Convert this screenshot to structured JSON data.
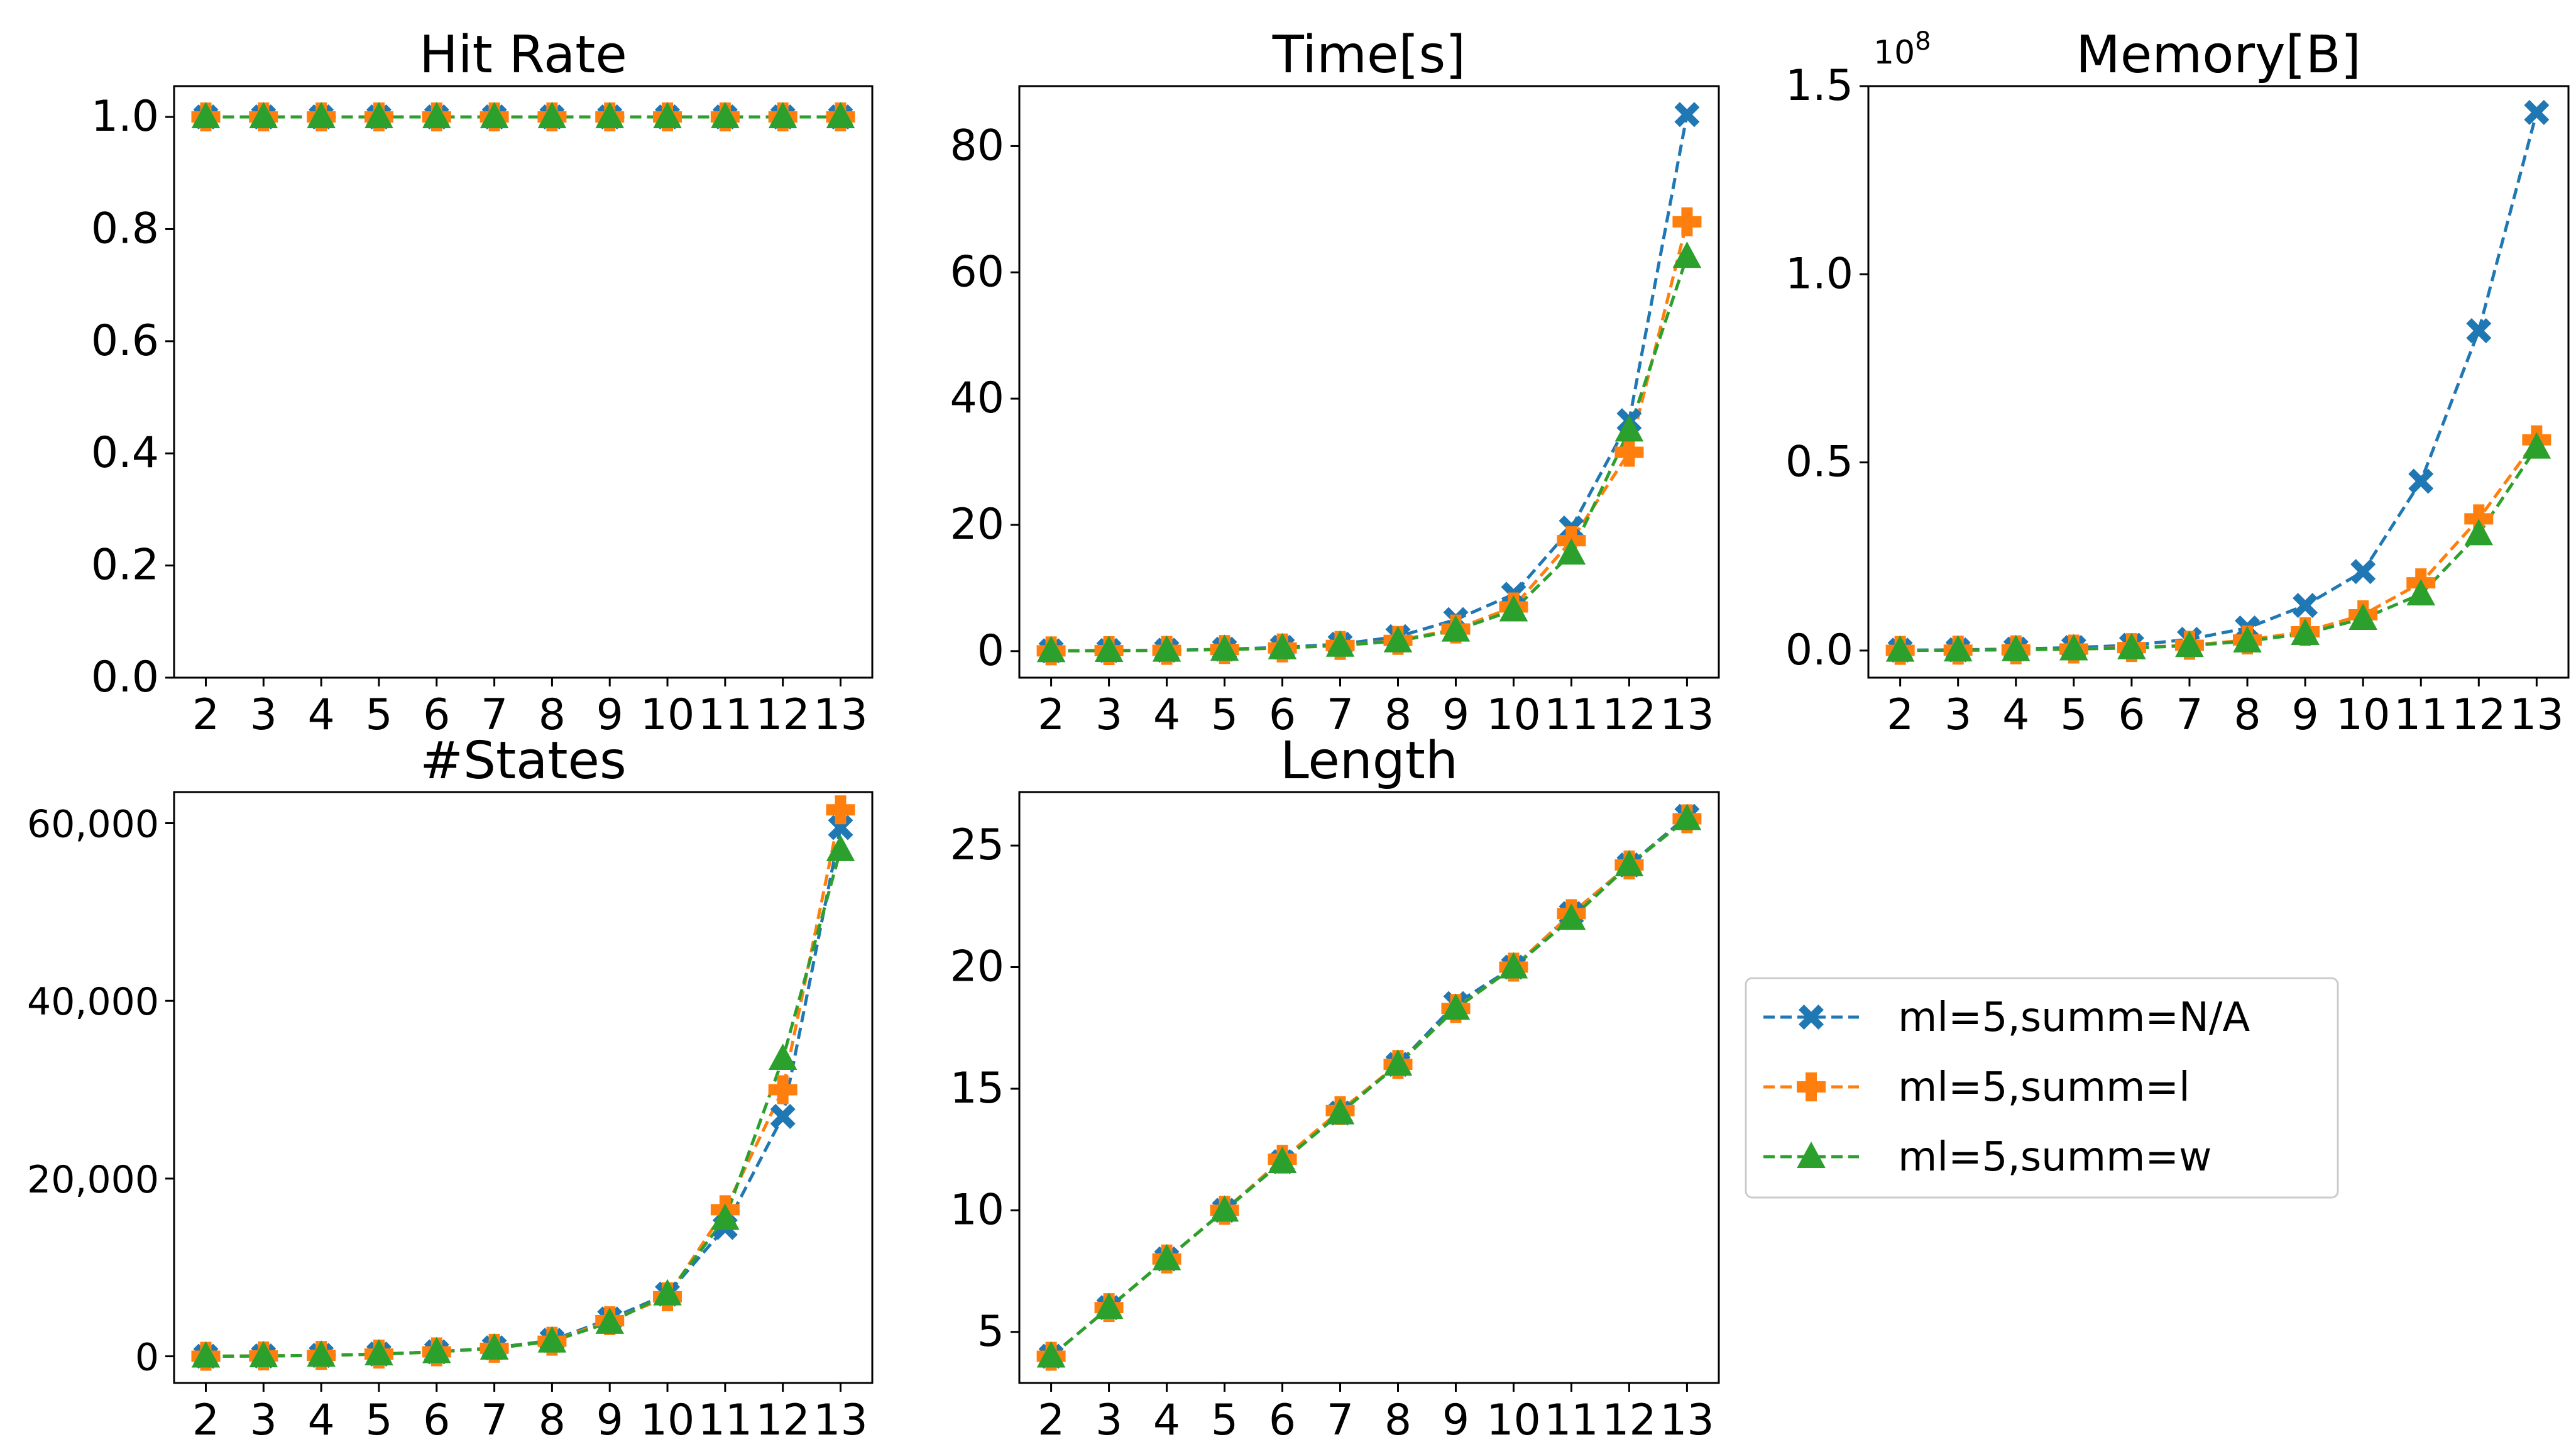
{
  "chart_data": {
    "type": "line",
    "x": [
      2,
      3,
      4,
      5,
      6,
      7,
      8,
      9,
      10,
      11,
      12,
      13
    ],
    "x_tick_labels": [
      "2",
      "3",
      "4",
      "5",
      "6",
      "7",
      "8",
      "9",
      "10",
      "11",
      "12",
      "13"
    ],
    "legend": {
      "placement": "right-middle",
      "entries": [
        {
          "name": "ml=5,summ=N/A",
          "color": "#1f77b4",
          "marker": "x"
        },
        {
          "name": "ml=5,summ=l",
          "color": "#ff7f0e",
          "marker": "plus"
        },
        {
          "name": "ml=5,summ=w",
          "color": "#2ca02c",
          "marker": "triangle"
        }
      ]
    },
    "panels": [
      {
        "title": "Hit Rate",
        "ylim": [
          0,
          1.055
        ],
        "yticks": [
          0,
          0.2,
          0.4,
          0.6,
          0.8,
          1.0
        ],
        "ytick_labels": [
          "0.0",
          "0.2",
          "0.4",
          "0.6",
          "0.8",
          "1.0"
        ],
        "series": [
          {
            "name": "ml=5,summ=N/A",
            "values": [
              1,
              1,
              1,
              1,
              1,
              1,
              1,
              1,
              1,
              1,
              1,
              1
            ]
          },
          {
            "name": "ml=5,summ=l",
            "values": [
              1,
              1,
              1,
              1,
              1,
              1,
              1,
              1,
              1,
              1,
              1,
              1
            ]
          },
          {
            "name": "ml=5,summ=w",
            "values": [
              1,
              1,
              1,
              1,
              1,
              1,
              1,
              1,
              1,
              1,
              1,
              1
            ]
          }
        ]
      },
      {
        "title": "Time[s]",
        "ylim": [
          -4.2,
          89.5
        ],
        "yticks": [
          0,
          20,
          40,
          60,
          80
        ],
        "ytick_labels": [
          "0",
          "20",
          "40",
          "60",
          "80"
        ],
        "series": [
          {
            "name": "ml=5,summ=N/A",
            "values": [
              0.05,
              0.1,
              0.15,
              0.3,
              0.6,
              1.1,
              2.3,
              5.0,
              9.0,
              19.5,
              36.5,
              85.0
            ]
          },
          {
            "name": "ml=5,summ=l",
            "values": [
              0.04,
              0.08,
              0.12,
              0.25,
              0.5,
              0.9,
              1.7,
              3.5,
              7.0,
              17.5,
              31.5,
              68.0
            ]
          },
          {
            "name": "ml=5,summ=w",
            "values": [
              0.04,
              0.08,
              0.12,
              0.25,
              0.5,
              0.9,
              1.6,
              3.3,
              6.5,
              15.5,
              35.0,
              62.5
            ]
          }
        ]
      },
      {
        "title": "Memory[B]",
        "offset_text": "10",
        "offset_exponent": "8",
        "ylim": [
          -0.072,
          1.5
        ],
        "yticks": [
          0,
          0.5,
          1.0,
          1.5
        ],
        "ytick_labels": [
          "0.0",
          "0.5",
          "1.0",
          "1.5"
        ],
        "series": [
          {
            "name": "ml=5,summ=N/A",
            "values": [
              0.001,
              0.002,
              0.004,
              0.008,
              0.014,
              0.03,
              0.06,
              0.12,
              0.21,
              0.45,
              0.85,
              1.43
            ]
          },
          {
            "name": "ml=5,summ=l",
            "values": [
              0.0005,
              0.001,
              0.002,
              0.004,
              0.008,
              0.014,
              0.028,
              0.05,
              0.095,
              0.18,
              0.35,
              0.56
            ]
          },
          {
            "name": "ml=5,summ=w",
            "values": [
              0.0005,
              0.001,
              0.002,
              0.004,
              0.007,
              0.013,
              0.025,
              0.045,
              0.085,
              0.15,
              0.31,
              0.54
            ]
          }
        ]
      },
      {
        "title": "#States",
        "ylim": [
          -3000,
          63500
        ],
        "yticks": [
          0,
          20000,
          40000,
          60000
        ],
        "ytick_labels": [
          "0",
          "20,000",
          "40,000",
          "60,000"
        ],
        "series": [
          {
            "name": "ml=5,summ=N/A",
            "values": [
              10,
              40,
              100,
              250,
              500,
              950,
              1800,
              4200,
              7000,
              14500,
              27000,
              59500
            ]
          },
          {
            "name": "ml=5,summ=l",
            "values": [
              10,
              40,
              100,
              250,
              500,
              900,
              1700,
              4000,
              6700,
              16500,
              30000,
              61500
            ]
          },
          {
            "name": "ml=5,summ=w",
            "values": [
              10,
              40,
              100,
              250,
              500,
              900,
              1700,
              3800,
              7000,
              15500,
              33500,
              57000
            ]
          }
        ]
      },
      {
        "title": "Length",
        "ylim": [
          2.9,
          27.2
        ],
        "yticks": [
          5,
          10,
          15,
          20,
          25
        ],
        "ytick_labels": [
          "5",
          "10",
          "15",
          "20",
          "25"
        ],
        "series": [
          {
            "name": "ml=5,summ=N/A",
            "values": [
              4,
              6,
              8,
              10,
              12,
              14,
              16,
              18.5,
              20,
              22.2,
              24.2,
              26.2
            ]
          },
          {
            "name": "ml=5,summ=l",
            "values": [
              4,
              6,
              8,
              10,
              12.1,
              14.1,
              16,
              18.3,
              20,
              22.2,
              24.2,
              26.1
            ]
          },
          {
            "name": "ml=5,summ=w",
            "values": [
              4,
              6,
              8,
              10,
              12,
              14,
              16,
              18.3,
              20,
              22,
              24.2,
              26.1
            ]
          }
        ]
      }
    ]
  }
}
